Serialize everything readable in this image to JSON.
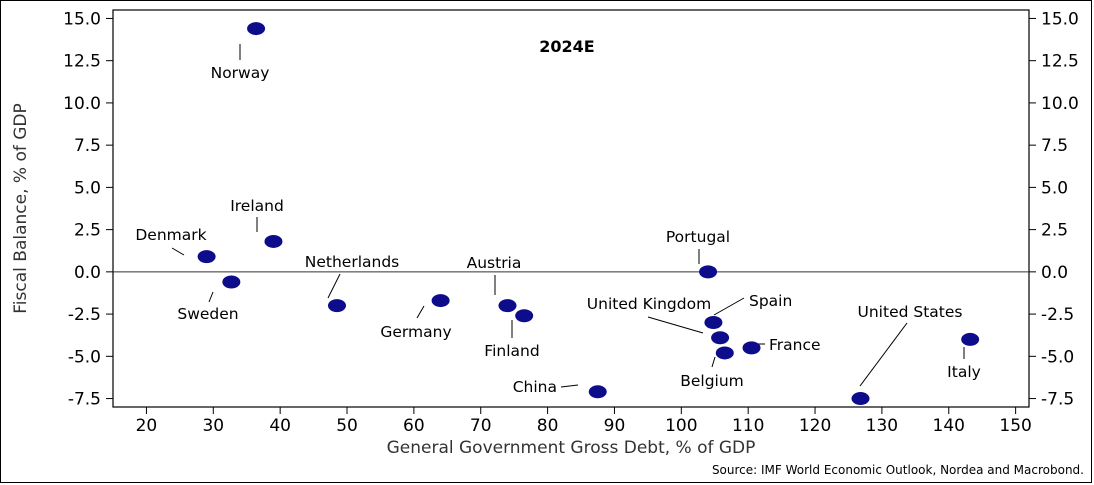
{
  "chart_data": {
    "type": "scatter",
    "title": "2024E",
    "xlabel": "General Government Gross Debt, % of GDP",
    "ylabel": "Fiscal Balance, % of GDP",
    "xlim": [
      15,
      152
    ],
    "ylim": [
      -8,
      15.5
    ],
    "x_ticks": [
      20,
      30,
      40,
      50,
      60,
      70,
      80,
      90,
      100,
      110,
      120,
      130,
      140,
      150
    ],
    "y_ticks": [
      -7.5,
      -5.0,
      -2.5,
      0.0,
      2.5,
      5.0,
      7.5,
      10.0,
      12.5,
      15.0
    ],
    "y_tick_labels": [
      "-7.5",
      "-5.0",
      "-2.5",
      "0.0",
      "2.5",
      "5.0",
      "7.5",
      "10.0",
      "12.5",
      "15.0"
    ],
    "marker_color": "#0d0d8c",
    "points": [
      {
        "label": "Norway",
        "x": 36.4,
        "y": 14.4
      },
      {
        "label": "Denmark",
        "x": 29.0,
        "y": 0.9
      },
      {
        "label": "Ireland",
        "x": 39.0,
        "y": 1.8
      },
      {
        "label": "Sweden",
        "x": 32.7,
        "y": -0.6
      },
      {
        "label": "Netherlands",
        "x": 48.5,
        "y": -2.0
      },
      {
        "label": "Germany",
        "x": 64.0,
        "y": -1.7
      },
      {
        "label": "Austria",
        "x": 74.0,
        "y": -2.0
      },
      {
        "label": "Finland",
        "x": 76.5,
        "y": -2.6
      },
      {
        "label": "China",
        "x": 87.5,
        "y": -7.1
      },
      {
        "label": "Portugal",
        "x": 104.0,
        "y": 0.0
      },
      {
        "label": "Spain",
        "x": 104.8,
        "y": -3.0
      },
      {
        "label": "United Kingdom",
        "x": 105.8,
        "y": -3.9
      },
      {
        "label": "Belgium",
        "x": 106.5,
        "y": -4.8
      },
      {
        "label": "France",
        "x": 110.5,
        "y": -4.5
      },
      {
        "label": "United States",
        "x": 126.8,
        "y": -7.5
      },
      {
        "label": "Italy",
        "x": 143.2,
        "y": -4.0
      }
    ],
    "zero_line": true,
    "source": "Source: IMF World Economic Outlook, Nordea and Macrobond."
  }
}
